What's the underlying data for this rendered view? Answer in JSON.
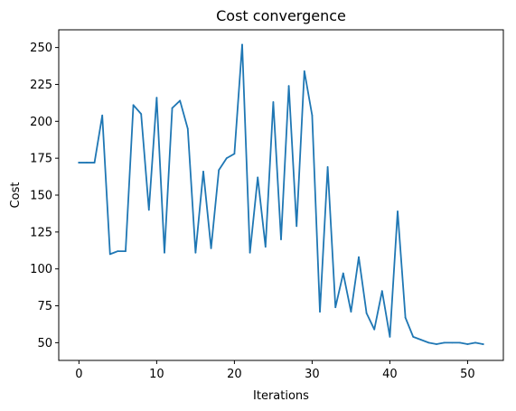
{
  "chart_data": {
    "type": "line",
    "title": "Cost convergence",
    "xlabel": "Iterations",
    "ylabel": "Cost",
    "xlim": [
      -2.6,
      54.6
    ],
    "ylim": [
      38,
      262
    ],
    "xticks": [
      0,
      10,
      20,
      30,
      40,
      50
    ],
    "yticks": [
      50,
      75,
      100,
      125,
      150,
      175,
      200,
      225,
      250
    ],
    "grid": false,
    "series": [
      {
        "color": "#1f77b4",
        "x": [
          0,
          1,
          2,
          3,
          4,
          5,
          6,
          7,
          8,
          9,
          10,
          11,
          12,
          13,
          14,
          15,
          16,
          17,
          18,
          19,
          20,
          21,
          22,
          23,
          24,
          25,
          26,
          27,
          28,
          29,
          30,
          31,
          32,
          33,
          34,
          35,
          36,
          37,
          38,
          39,
          40,
          41,
          42,
          43,
          44,
          45,
          46,
          47,
          48,
          49,
          50,
          51,
          52
        ],
        "y": [
          172,
          172,
          172,
          204,
          110,
          112,
          112,
          211,
          205,
          140,
          216,
          111,
          209,
          214,
          195,
          111,
          166,
          114,
          167,
          175,
          178,
          252,
          111,
          162,
          115,
          213,
          120,
          224,
          129,
          234,
          204,
          71,
          169,
          74,
          97,
          71,
          108,
          70,
          59,
          85,
          54,
          139,
          67,
          54,
          52,
          50,
          49,
          50,
          50,
          50,
          49,
          50,
          49
        ]
      }
    ]
  }
}
